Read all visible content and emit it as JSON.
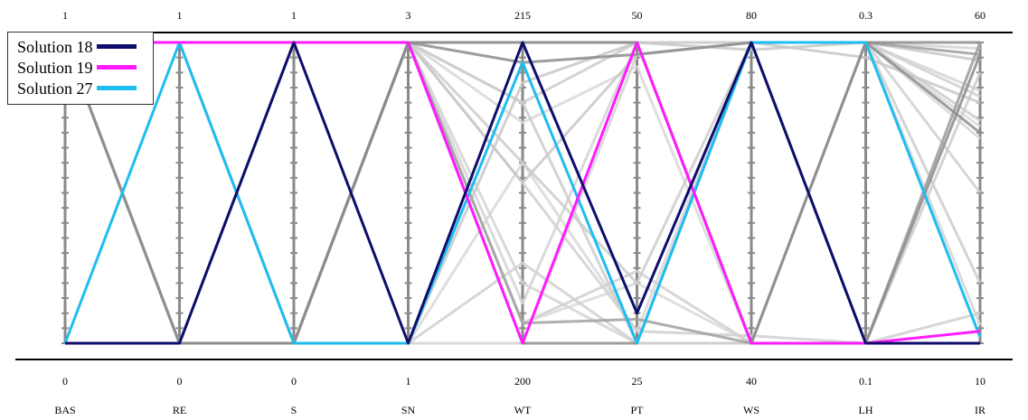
{
  "chart_data": {
    "type": "parallel_coordinates",
    "axes": [
      {
        "name": "BAS",
        "min": "0",
        "max": "1",
        "minv": 0,
        "maxv": 1
      },
      {
        "name": "RE",
        "min": "0",
        "max": "1",
        "minv": 0,
        "maxv": 1
      },
      {
        "name": "S",
        "min": "0",
        "max": "1",
        "minv": 0,
        "maxv": 1
      },
      {
        "name": "SN",
        "min": "1",
        "max": "3",
        "minv": 1,
        "maxv": 3
      },
      {
        "name": "WT",
        "min": "200",
        "max": "215",
        "minv": 200,
        "maxv": 215
      },
      {
        "name": "PT",
        "min": "25",
        "max": "50",
        "minv": 25,
        "maxv": 50
      },
      {
        "name": "WS",
        "min": "40",
        "max": "80",
        "minv": 40,
        "maxv": 80
      },
      {
        "name": "LH",
        "min": "0.1",
        "max": "0.3",
        "minv": 0.1,
        "maxv": 0.3
      },
      {
        "name": "IR",
        "min": "10",
        "max": "60",
        "minv": 10,
        "maxv": 60
      }
    ],
    "highlighted_series": [
      {
        "name": "Solution 18",
        "color": "#0d0d6b",
        "values": [
          0,
          0,
          1,
          1,
          215,
          27.5,
          80,
          0.1,
          10
        ]
      },
      {
        "name": "Solution 19",
        "color": "#ff1aff",
        "values": [
          1,
          1,
          1,
          3,
          200,
          50,
          40,
          0.1,
          12
        ]
      },
      {
        "name": "Solution 27",
        "color": "#1ebdf0",
        "values": [
          0,
          1,
          0,
          1,
          214,
          25,
          80,
          0.3,
          11
        ]
      }
    ],
    "background_series": [
      {
        "color": "#8c8c8c",
        "values": [
          1,
          0,
          0,
          3,
          215,
          50,
          40,
          0.3,
          60
        ]
      },
      {
        "color": "#8c8c8c",
        "values": [
          0,
          0,
          0,
          3,
          214,
          49,
          80,
          0.1,
          58
        ]
      },
      {
        "color": "#8c8c8c",
        "values": [
          1,
          1,
          0,
          3,
          200,
          25,
          80,
          0.3,
          45
        ]
      },
      {
        "color": "#a0a0a0",
        "values": [
          1,
          0,
          1,
          3,
          215,
          50,
          40,
          0.1,
          60
        ]
      },
      {
        "color": "#a0a0a0",
        "values": [
          1,
          0,
          0,
          3,
          201,
          27,
          40,
          0.3,
          58
        ]
      },
      {
        "color": "#c8c8c8",
        "values": [
          1,
          0,
          0,
          1,
          213,
          50,
          79,
          0.3,
          57
        ]
      },
      {
        "color": "#c8c8c8",
        "values": [
          0,
          0,
          0,
          3,
          208,
          49,
          80,
          0.29,
          50
        ]
      },
      {
        "color": "#cccccc",
        "values": [
          1,
          0,
          0,
          3,
          212,
          50,
          80,
          0.3,
          20
        ]
      },
      {
        "color": "#cccccc",
        "values": [
          1,
          0,
          0,
          3,
          209,
          30,
          80,
          0.3,
          47
        ]
      },
      {
        "color": "#cccccc",
        "values": [
          0,
          0,
          0,
          3,
          212,
          25,
          40,
          0.1,
          55
        ]
      },
      {
        "color": "#d0d0d0",
        "values": [
          1,
          0,
          0,
          3,
          208,
          26,
          41,
          0.1,
          15
        ]
      },
      {
        "color": "#d0d0d0",
        "values": [
          1,
          0,
          0,
          1,
          204,
          25,
          80,
          0.3,
          35
        ]
      },
      {
        "color": "#d0d0d0",
        "values": [
          1,
          0,
          0,
          3,
          201,
          31,
          40,
          0.3,
          51
        ]
      },
      {
        "color": "#d4d4d4",
        "values": [
          1,
          0,
          0,
          3,
          202,
          50,
          80,
          0.3,
          52
        ]
      },
      {
        "color": "#d4d4d4",
        "values": [
          1,
          0,
          0,
          1,
          200,
          49,
          80,
          0.3,
          13
        ]
      },
      {
        "color": "#d4d4d4",
        "values": [
          1,
          0,
          0,
          3,
          203,
          25,
          40,
          0.3,
          59
        ]
      },
      {
        "color": "#d8d8d8",
        "values": [
          1,
          0,
          0,
          3,
          211,
          48,
          40,
          0.3,
          44
        ]
      },
      {
        "color": "#d8d8d8",
        "values": [
          1,
          0,
          0,
          1,
          209,
          26,
          80,
          0.1,
          60
        ]
      },
      {
        "color": "#dadada",
        "values": [
          1,
          0,
          0,
          3,
          201,
          30,
          40,
          0.3,
          46
        ]
      }
    ],
    "legend": {
      "position": "top-left",
      "entries": [
        "Solution 18",
        "Solution 19",
        "Solution 27"
      ]
    },
    "tick_marks_per_axis": 20
  }
}
